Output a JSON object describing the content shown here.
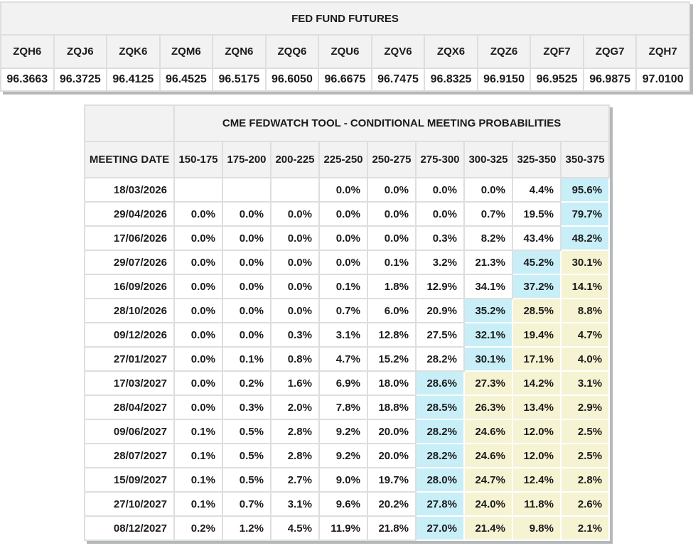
{
  "colors": {
    "header_bg": "#f2f2f2",
    "grid_border": "#dedede",
    "table_shadow": "#b5b8ba",
    "highlight_cyan": "#c8eef8",
    "highlight_yellow": "#f6f3d3",
    "text": "#1b1b1b"
  },
  "futures": {
    "title": "FED FUND FUTURES",
    "contracts": [
      "ZQH6",
      "ZQJ6",
      "ZQK6",
      "ZQM6",
      "ZQN6",
      "ZQQ6",
      "ZQU6",
      "ZQV6",
      "ZQX6",
      "ZQZ6",
      "ZQF7",
      "ZQG7",
      "ZQH7"
    ],
    "prices": [
      "96.3663",
      "96.3725",
      "96.4125",
      "96.4525",
      "96.5175",
      "96.6050",
      "96.6675",
      "96.7475",
      "96.8325",
      "96.9150",
      "96.9525",
      "96.9875",
      "97.0100"
    ]
  },
  "fedwatch": {
    "title": "CME FEDWATCH TOOL - CONDITIONAL MEETING PROBABILITIES",
    "date_header": "MEETING DATE",
    "rate_headers": [
      "150-175",
      "175-200",
      "200-225",
      "225-250",
      "250-275",
      "275-300",
      "300-325",
      "325-350",
      "350-375"
    ],
    "rows": [
      {
        "date": "18/03/2026",
        "values": [
          "",
          "",
          "",
          "0.0%",
          "0.0%",
          "0.0%",
          "0.0%",
          "4.4%",
          "95.6%"
        ],
        "h": [
          "",
          "",
          "",
          "",
          "",
          "",
          "",
          "",
          "cyan"
        ]
      },
      {
        "date": "29/04/2026",
        "values": [
          "0.0%",
          "0.0%",
          "0.0%",
          "0.0%",
          "0.0%",
          "0.0%",
          "0.7%",
          "19.5%",
          "79.7%"
        ],
        "h": [
          "",
          "",
          "",
          "",
          "",
          "",
          "",
          "",
          "cyan"
        ]
      },
      {
        "date": "17/06/2026",
        "values": [
          "0.0%",
          "0.0%",
          "0.0%",
          "0.0%",
          "0.0%",
          "0.3%",
          "8.2%",
          "43.4%",
          "48.2%"
        ],
        "h": [
          "",
          "",
          "",
          "",
          "",
          "",
          "",
          "",
          "cyan"
        ]
      },
      {
        "date": "29/07/2026",
        "values": [
          "0.0%",
          "0.0%",
          "0.0%",
          "0.0%",
          "0.1%",
          "3.2%",
          "21.3%",
          "45.2%",
          "30.1%"
        ],
        "h": [
          "",
          "",
          "",
          "",
          "",
          "",
          "",
          "cyan",
          "yellow"
        ]
      },
      {
        "date": "16/09/2026",
        "values": [
          "0.0%",
          "0.0%",
          "0.0%",
          "0.1%",
          "1.8%",
          "12.9%",
          "34.1%",
          "37.2%",
          "14.1%"
        ],
        "h": [
          "",
          "",
          "",
          "",
          "",
          "",
          "",
          "cyan",
          "yellow"
        ]
      },
      {
        "date": "28/10/2026",
        "values": [
          "0.0%",
          "0.0%",
          "0.0%",
          "0.7%",
          "6.0%",
          "20.9%",
          "35.2%",
          "28.5%",
          "8.8%"
        ],
        "h": [
          "",
          "",
          "",
          "",
          "",
          "",
          "cyan",
          "yellow",
          "yellow"
        ]
      },
      {
        "date": "09/12/2026",
        "values": [
          "0.0%",
          "0.0%",
          "0.3%",
          "3.1%",
          "12.8%",
          "27.5%",
          "32.1%",
          "19.4%",
          "4.7%"
        ],
        "h": [
          "",
          "",
          "",
          "",
          "",
          "",
          "cyan",
          "yellow",
          "yellow"
        ]
      },
      {
        "date": "27/01/2027",
        "values": [
          "0.0%",
          "0.1%",
          "0.8%",
          "4.7%",
          "15.2%",
          "28.2%",
          "30.1%",
          "17.1%",
          "4.0%"
        ],
        "h": [
          "",
          "",
          "",
          "",
          "",
          "",
          "cyan",
          "yellow",
          "yellow"
        ]
      },
      {
        "date": "17/03/2027",
        "values": [
          "0.0%",
          "0.2%",
          "1.6%",
          "6.9%",
          "18.0%",
          "28.6%",
          "27.3%",
          "14.2%",
          "3.1%"
        ],
        "h": [
          "",
          "",
          "",
          "",
          "",
          "cyan",
          "yellow",
          "yellow",
          "yellow"
        ]
      },
      {
        "date": "28/04/2027",
        "values": [
          "0.0%",
          "0.3%",
          "2.0%",
          "7.8%",
          "18.8%",
          "28.5%",
          "26.3%",
          "13.4%",
          "2.9%"
        ],
        "h": [
          "",
          "",
          "",
          "",
          "",
          "cyan",
          "yellow",
          "yellow",
          "yellow"
        ]
      },
      {
        "date": "09/06/2027",
        "values": [
          "0.1%",
          "0.5%",
          "2.8%",
          "9.2%",
          "20.0%",
          "28.2%",
          "24.6%",
          "12.0%",
          "2.5%"
        ],
        "h": [
          "",
          "",
          "",
          "",
          "",
          "cyan",
          "yellow",
          "yellow",
          "yellow"
        ]
      },
      {
        "date": "28/07/2027",
        "values": [
          "0.1%",
          "0.5%",
          "2.8%",
          "9.2%",
          "20.0%",
          "28.2%",
          "24.6%",
          "12.0%",
          "2.5%"
        ],
        "h": [
          "",
          "",
          "",
          "",
          "",
          "cyan",
          "yellow",
          "yellow",
          "yellow"
        ]
      },
      {
        "date": "15/09/2027",
        "values": [
          "0.1%",
          "0.5%",
          "2.7%",
          "9.0%",
          "19.7%",
          "28.0%",
          "24.7%",
          "12.4%",
          "2.8%"
        ],
        "h": [
          "",
          "",
          "",
          "",
          "",
          "cyan",
          "yellow",
          "yellow",
          "yellow"
        ]
      },
      {
        "date": "27/10/2027",
        "values": [
          "0.1%",
          "0.7%",
          "3.1%",
          "9.6%",
          "20.2%",
          "27.8%",
          "24.0%",
          "11.8%",
          "2.6%"
        ],
        "h": [
          "",
          "",
          "",
          "",
          "",
          "cyan",
          "yellow",
          "yellow",
          "yellow"
        ]
      },
      {
        "date": "08/12/2027",
        "values": [
          "0.2%",
          "1.2%",
          "4.5%",
          "11.9%",
          "21.8%",
          "27.0%",
          "21.4%",
          "9.8%",
          "2.1%"
        ],
        "h": [
          "",
          "",
          "",
          "",
          "",
          "cyan",
          "yellow",
          "yellow",
          "yellow"
        ]
      }
    ]
  }
}
